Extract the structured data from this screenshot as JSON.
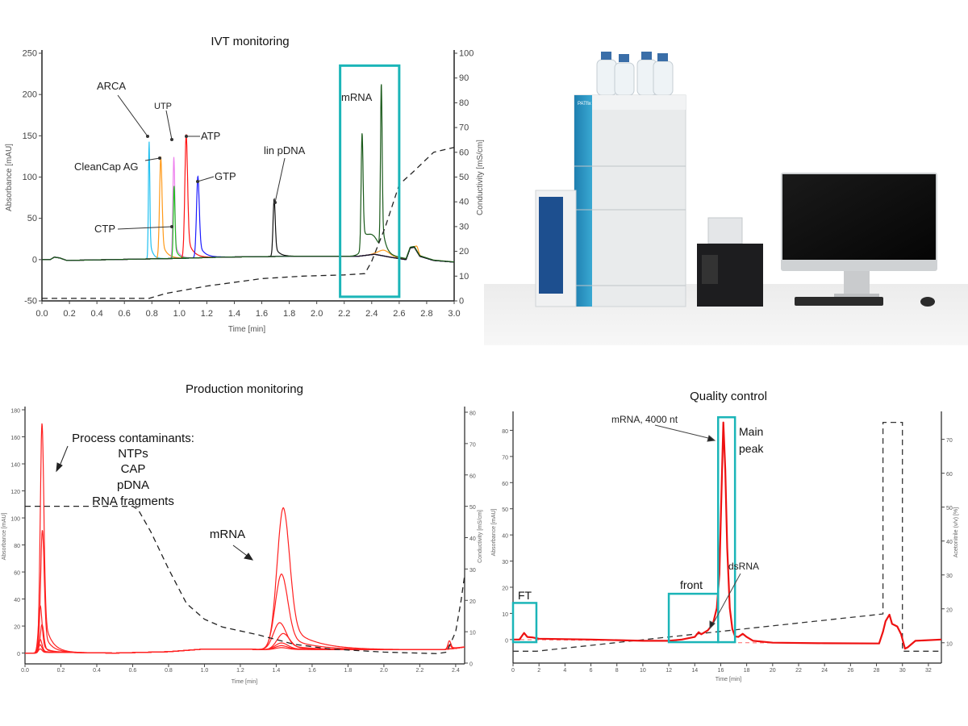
{
  "colors": {
    "highlight_box": "#1bb5b8",
    "conductivity_line": "#222222",
    "production_trace": "#ff2020",
    "qc_trace": "#ee1111"
  },
  "ivt": {
    "title": "IVT monitoring",
    "xlabel": "Time [min]",
    "ylabel": "Absorbance [mAU]",
    "y2label": "Conductivity [mS/cm]",
    "annotations": {
      "arca": "ARCA",
      "utp": "UTP",
      "atp": "ATP",
      "cleancap": "CleanCap AG",
      "gtp": "GTP",
      "ctp": "CTP",
      "pdna": "lin pDNA",
      "mrna": "mRNA"
    }
  },
  "production": {
    "title": "Production monitoring",
    "xlabel": "Time [min]",
    "ylabel": "Absorbance [mAU]",
    "y2label": "Conductivity [mS/cm]",
    "annotations": {
      "contaminants_title": "Process contaminants:",
      "contaminants": [
        "NTPs",
        "CAP",
        "pDNA",
        "RNA fragments"
      ],
      "mrna": "mRNA"
    }
  },
  "qc": {
    "title": "Quality control",
    "xlabel": "Time [min]",
    "ylabel": "Absorbance [mAU]",
    "y2label": "Acetonitrile (v/v) [%]",
    "annotations": {
      "mrna": "mRNA, 4000 nt",
      "main_peak": [
        "Main",
        "peak"
      ],
      "dsrna": "dsRNA",
      "front": "front",
      "ft": "FT"
    }
  },
  "photo": {
    "instrument_brand": "PATfix"
  },
  "chart_data": [
    {
      "id": "ivt",
      "type": "line",
      "title": "IVT monitoring",
      "xlabel": "Time [min]",
      "ylabel": "Absorbance [mAU]",
      "y2label": "Conductivity [mS/cm]",
      "xlim": [
        0,
        3.0
      ],
      "ylim": [
        -50,
        250
      ],
      "y2lim": [
        0,
        100
      ],
      "xticks": [
        "0.0",
        "0.2",
        "0.4",
        "0.6",
        "0.8",
        "1.0",
        "1.2",
        "1.4",
        "1.6",
        "1.8",
        "2.0",
        "2.2",
        "2.4",
        "2.6",
        "2.8",
        "3.0"
      ],
      "yticks": [
        "-50",
        "0",
        "50",
        "100",
        "150",
        "200",
        "250"
      ],
      "y2ticks": [
        "0",
        "10",
        "20",
        "30",
        "40",
        "50",
        "60",
        "70",
        "80",
        "90",
        "100"
      ],
      "grid": false,
      "baseline": [
        [
          0,
          0
        ],
        [
          0.06,
          0
        ],
        [
          0.09,
          3
        ],
        [
          0.13,
          2
        ],
        [
          0.18,
          -1
        ],
        [
          0.5,
          0
        ],
        [
          1.0,
          1.5
        ],
        [
          1.3,
          3
        ],
        [
          1.8,
          4
        ],
        [
          2.3,
          4
        ],
        [
          2.42,
          6.5
        ],
        [
          2.55,
          2.5
        ],
        [
          2.65,
          0
        ],
        [
          2.68,
          14
        ],
        [
          2.71,
          15
        ],
        [
          2.75,
          4
        ],
        [
          2.85,
          -1
        ],
        [
          3.0,
          -3
        ]
      ],
      "series": [
        {
          "color": "#21c0f0",
          "peaks": [
            {
              "t": 0.78,
              "h": 142,
              "w": 0.005
            }
          ]
        },
        {
          "color": "#ff9a1a",
          "peaks": [
            {
              "t": 0.865,
              "h": 123,
              "w": 0.009
            },
            {
              "t": 2.49,
              "h": 7,
              "w": 0.04
            },
            {
              "t": 2.73,
              "h": 6,
              "w": 0.01
            }
          ]
        },
        {
          "color": "#ee82ee",
          "peaks": [
            {
              "t": 0.96,
              "h": 123,
              "w": 0.007
            }
          ]
        },
        {
          "color": "#22c022",
          "peaks": [
            {
              "t": 0.962,
              "h": 88,
              "w": 0.006
            }
          ]
        },
        {
          "color": "#ff1515",
          "peaks": [
            {
              "t": 1.05,
              "h": 150,
              "w": 0.01
            }
          ]
        },
        {
          "color": "#1c1cff",
          "peaks": [
            {
              "t": 1.135,
              "h": 99,
              "w": 0.01
            }
          ]
        },
        {
          "color": "#111111",
          "peaks": [
            {
              "t": 1.69,
              "h": 70,
              "w": 0.008
            }
          ]
        },
        {
          "color": "#1a5a1a",
          "peaks": [
            {
              "t": 2.33,
              "h": 141,
              "w": 0.007
            },
            {
              "t": 2.47,
              "h": 200,
              "w": 0.006
            },
            {
              "t": 2.4,
              "h": 22,
              "w": 0.05
            }
          ]
        }
      ],
      "conductivity": [
        [
          0,
          1
        ],
        [
          0.78,
          1
        ],
        [
          0.9,
          3
        ],
        [
          1.2,
          6
        ],
        [
          1.6,
          9
        ],
        [
          1.9,
          10
        ],
        [
          2.2,
          10.5
        ],
        [
          2.35,
          11
        ],
        [
          2.4,
          16
        ],
        [
          2.5,
          30
        ],
        [
          2.6,
          47
        ],
        [
          2.7,
          52
        ],
        [
          2.85,
          60
        ],
        [
          3.0,
          62
        ]
      ],
      "highlight": {
        "x": [
          2.17,
          2.6
        ],
        "y": [
          -45,
          235
        ]
      }
    },
    {
      "id": "production",
      "type": "line",
      "title": "Production monitoring",
      "xlabel": "Time [min]",
      "ylabel": "Absorbance [mAU]",
      "y2label": "Conductivity [mS/cm]",
      "xlim": [
        0,
        2.45
      ],
      "ylim": [
        -8,
        180
      ],
      "y2lim": [
        0,
        80
      ],
      "xticks": [
        "0.0",
        "0.2",
        "0.4",
        "0.6",
        "0.8",
        "1.0",
        "1.2",
        "1.4",
        "1.6",
        "1.8",
        "2.0",
        "2.2",
        "2.4"
      ],
      "yticks": [
        "0",
        "20",
        "40",
        "60",
        "80",
        "100",
        "120",
        "140",
        "160",
        "180"
      ],
      "y2ticks": [
        "0",
        "10",
        "20",
        "30",
        "40",
        "50",
        "60",
        "70",
        "80"
      ],
      "grid": false,
      "baseline": [
        [
          0,
          0
        ],
        [
          0.06,
          0
        ],
        [
          0.2,
          0.5
        ],
        [
          0.5,
          0
        ],
        [
          0.8,
          1
        ],
        [
          1.0,
          3
        ],
        [
          1.2,
          3
        ],
        [
          1.35,
          2.5
        ],
        [
          1.6,
          2.5
        ],
        [
          2.33,
          2.5
        ],
        [
          2.36,
          3
        ],
        [
          2.4,
          3.5
        ],
        [
          2.45,
          4.5
        ]
      ],
      "series": [
        {
          "color": "#ff2020",
          "peaks": [
            {
              "t": 0.095,
              "h": 170,
              "w": 0.01
            },
            {
              "t": 1.44,
              "h": 105,
              "w": 0.035
            },
            {
              "t": 2.365,
              "h": 6,
              "w": 0.008
            }
          ]
        },
        {
          "color": "#ff2020",
          "peaks": [
            {
              "t": 0.097,
              "h": 91,
              "w": 0.01
            },
            {
              "t": 1.43,
              "h": 56,
              "w": 0.035
            },
            {
              "t": 2.365,
              "h": 3,
              "w": 0.008
            }
          ]
        },
        {
          "color": "#ff2020",
          "peaks": [
            {
              "t": 0.085,
              "h": 35,
              "w": 0.01
            },
            {
              "t": 1.42,
              "h": 20,
              "w": 0.035
            }
          ]
        },
        {
          "color": "#ff2020",
          "peaks": [
            {
              "t": 0.095,
              "h": 21,
              "w": 0.01
            },
            {
              "t": 1.44,
              "h": 12,
              "w": 0.035
            }
          ]
        },
        {
          "color": "#ff2020",
          "peaks": [
            {
              "t": 0.085,
              "h": 10,
              "w": 0.01
            },
            {
              "t": 1.43,
              "h": 5,
              "w": 0.035
            }
          ]
        },
        {
          "color": "#ff2020",
          "peaks": [
            {
              "t": 0.085,
              "h": 6,
              "w": 0.01
            },
            {
              "t": 1.43,
              "h": 3,
              "w": 0.035
            }
          ]
        },
        {
          "color": "#ff2020",
          "peaks": [
            {
              "t": 0.085,
              "h": 3,
              "w": 0.01
            },
            {
              "t": 1.43,
              "h": 1.5,
              "w": 0.035
            }
          ]
        }
      ],
      "conductivity": [
        [
          0,
          50
        ],
        [
          0.6,
          50
        ],
        [
          0.63,
          49
        ],
        [
          0.7,
          42
        ],
        [
          0.8,
          30
        ],
        [
          0.9,
          19
        ],
        [
          1.0,
          14
        ],
        [
          1.1,
          11.5
        ],
        [
          1.3,
          9
        ],
        [
          1.5,
          6
        ],
        [
          1.7,
          4.5
        ],
        [
          2.0,
          3.5
        ],
        [
          2.3,
          3
        ],
        [
          2.35,
          3.5
        ],
        [
          2.4,
          10
        ],
        [
          2.43,
          20
        ],
        [
          2.45,
          28
        ]
      ]
    },
    {
      "id": "qc",
      "type": "line",
      "title": "Quality control",
      "xlabel": "Time [min]",
      "ylabel": "Absorbance [mAU]",
      "y2label": "Acetonitrile (v/v) [%]",
      "xlim": [
        0,
        33
      ],
      "ylim": [
        -9,
        86
      ],
      "y2lim": [
        4,
        78
      ],
      "xticks": [
        "0",
        "2",
        "4",
        "6",
        "8",
        "10",
        "12",
        "14",
        "16",
        "18",
        "20",
        "22",
        "24",
        "26",
        "28",
        "30",
        "32"
      ],
      "yticks": [
        "0",
        "10",
        "20",
        "30",
        "40",
        "50",
        "60",
        "70",
        "80"
      ],
      "y2ticks": [
        "10",
        "20",
        "30",
        "40",
        "50",
        "60",
        "70"
      ],
      "grid": false,
      "trace": [
        [
          0,
          0
        ],
        [
          0.5,
          0
        ],
        [
          0.7,
          1.5
        ],
        [
          0.85,
          2.5
        ],
        [
          1.1,
          1
        ],
        [
          1.5,
          0.8
        ],
        [
          2,
          0.3
        ],
        [
          6,
          0
        ],
        [
          10,
          -0.5
        ],
        [
          12,
          -0.5
        ],
        [
          13,
          0
        ],
        [
          14,
          1
        ],
        [
          14.3,
          2.8
        ],
        [
          14.5,
          2
        ],
        [
          15,
          3.5
        ],
        [
          15.4,
          6
        ],
        [
          15.7,
          12
        ],
        [
          15.9,
          25
        ],
        [
          16.05,
          55
        ],
        [
          16.2,
          83
        ],
        [
          16.35,
          65
        ],
        [
          16.5,
          35
        ],
        [
          16.7,
          12
        ],
        [
          16.9,
          4
        ],
        [
          17.1,
          1.2
        ],
        [
          17.35,
          1
        ],
        [
          17.7,
          2.2
        ],
        [
          18,
          1
        ],
        [
          18.5,
          -0.5
        ],
        [
          20,
          -1.2
        ],
        [
          24,
          -1.4
        ],
        [
          28.2,
          -1.5
        ],
        [
          28.5,
          3
        ],
        [
          28.7,
          7
        ],
        [
          29,
          9.5
        ],
        [
          29.2,
          6
        ],
        [
          29.6,
          5
        ],
        [
          29.9,
          2
        ],
        [
          30.2,
          -3.5
        ],
        [
          30.4,
          -3
        ],
        [
          31,
          -0.5
        ],
        [
          33,
          0
        ]
      ],
      "trace_baseline": [
        [
          0,
          0
        ],
        [
          10,
          -0.5
        ],
        [
          17,
          -1.2
        ],
        [
          28.3,
          -1.5
        ]
      ],
      "acetonitrile": [
        [
          0,
          7.5
        ],
        [
          1.8,
          7.5
        ],
        [
          28.5,
          18.5
        ],
        [
          28.5,
          75
        ],
        [
          30,
          75
        ],
        [
          30,
          7.5
        ],
        [
          33,
          7.5
        ]
      ],
      "highlights": [
        {
          "x": [
            0,
            1.8
          ],
          "y": [
            -1,
            14
          ]
        },
        {
          "x": [
            12,
            15.8
          ],
          "y": [
            -1,
            17.5
          ]
        },
        {
          "x": [
            15.8,
            17.1
          ],
          "y": [
            -1,
            85
          ]
        }
      ]
    }
  ]
}
